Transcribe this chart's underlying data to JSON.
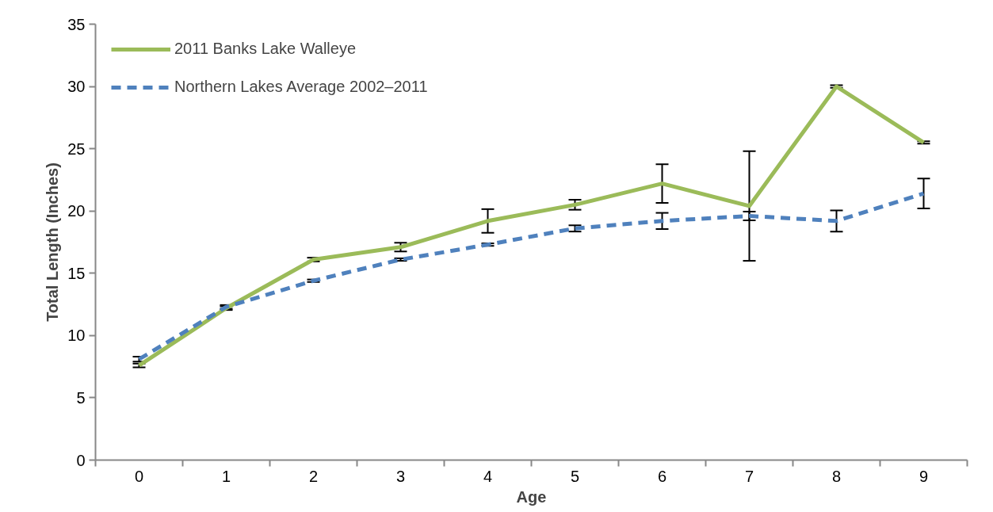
{
  "chart_data": {
    "type": "line",
    "xlabel": "Age",
    "ylabel": "Total Length (Inches)",
    "categories": [
      "0",
      "1",
      "2",
      "3",
      "4",
      "5",
      "6",
      "7",
      "8",
      "9"
    ],
    "series": [
      {
        "name": "2011 Banks Lake Walleye",
        "color": "#9bbb59",
        "line_style": "solid",
        "values": [
          7.6,
          12.2,
          16.1,
          17.1,
          19.2,
          20.5,
          22.2,
          20.4,
          30.0,
          25.5
        ],
        "errors": [
          0.15,
          0.15,
          0.15,
          0.35,
          0.95,
          0.4,
          1.55,
          4.4,
          0.1,
          0.1
        ]
      },
      {
        "name": "Northern Lakes Average 2002–2011",
        "color": "#4f81bd",
        "line_style": "dashed",
        "values": [
          8.1,
          12.3,
          14.4,
          16.1,
          17.3,
          18.6,
          19.2,
          19.6,
          19.2,
          21.4
        ],
        "errors": [
          0.2,
          0.15,
          0.1,
          0.1,
          0.1,
          0.25,
          0.65,
          0.35,
          0.85,
          1.2
        ]
      }
    ],
    "ylim": [
      0,
      35
    ],
    "yticks": [
      0,
      5,
      10,
      15,
      20,
      25,
      30,
      35
    ],
    "grid": false,
    "legend": "top left",
    "marker": "none"
  }
}
